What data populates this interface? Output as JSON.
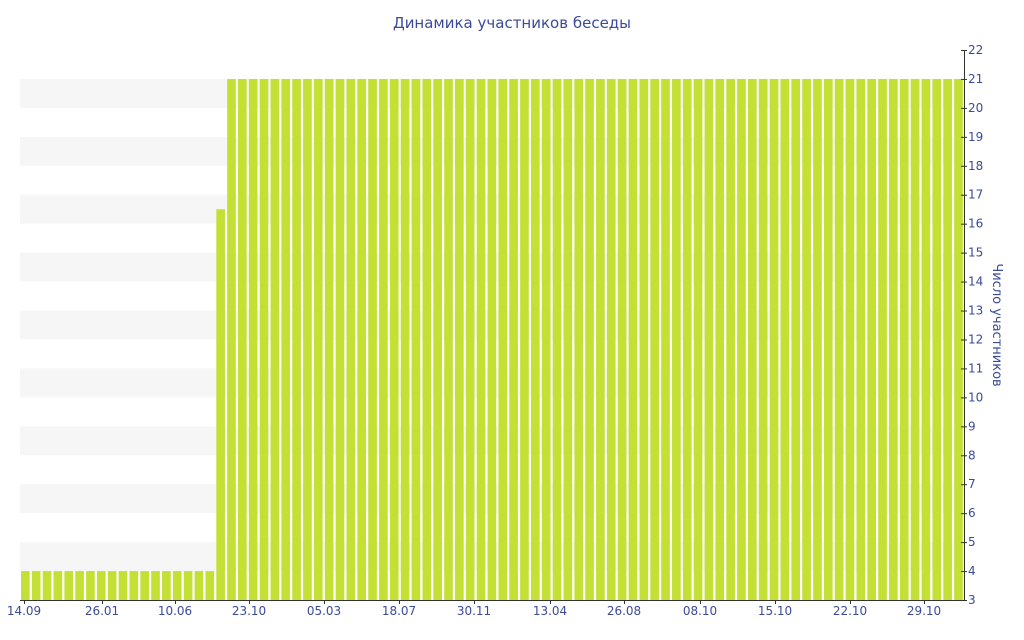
{
  "chart_data": {
    "type": "bar",
    "title": "Динамика участников беседы",
    "xlabel": "",
    "ylabel": "Число участников",
    "ylim": [
      3,
      22
    ],
    "y_axis_side": "right",
    "grid": "alternating horizontal bands",
    "legend": "none",
    "bar_color": "#c4e034",
    "band_color": "#f6f6f6",
    "text_color": "#3b4a9a",
    "x_tick_labels": [
      "14.09",
      "26.01",
      "10.06",
      "23.10",
      "05.03",
      "18.07",
      "30.11",
      "13.04",
      "26.08",
      "08.10",
      "15.10",
      "22.10",
      "29.10"
    ],
    "y_tick_labels": [
      "3",
      "4",
      "5",
      "6",
      "7",
      "8",
      "9",
      "10",
      "11",
      "12",
      "13",
      "14",
      "15",
      "16",
      "17",
      "18",
      "19",
      "20",
      "21",
      "22"
    ],
    "values": [
      4,
      4,
      4,
      4,
      4,
      4,
      4,
      4,
      4,
      4,
      4,
      4,
      4,
      4,
      4,
      4,
      4,
      4,
      16.5,
      21,
      21,
      21,
      21,
      21,
      21,
      21,
      21,
      21,
      21,
      21,
      21,
      21,
      21,
      21,
      21,
      21,
      21,
      21,
      21,
      21,
      21,
      21,
      21,
      21,
      21,
      21,
      21,
      21,
      21,
      21,
      21,
      21,
      21,
      21,
      21,
      21,
      21,
      21,
      21,
      21,
      21,
      21,
      21,
      21,
      21,
      21,
      21,
      21,
      21,
      21,
      21,
      21,
      21,
      21,
      21,
      21,
      21,
      21,
      21,
      21,
      21,
      21,
      21,
      21,
      21,
      21,
      21
    ]
  }
}
